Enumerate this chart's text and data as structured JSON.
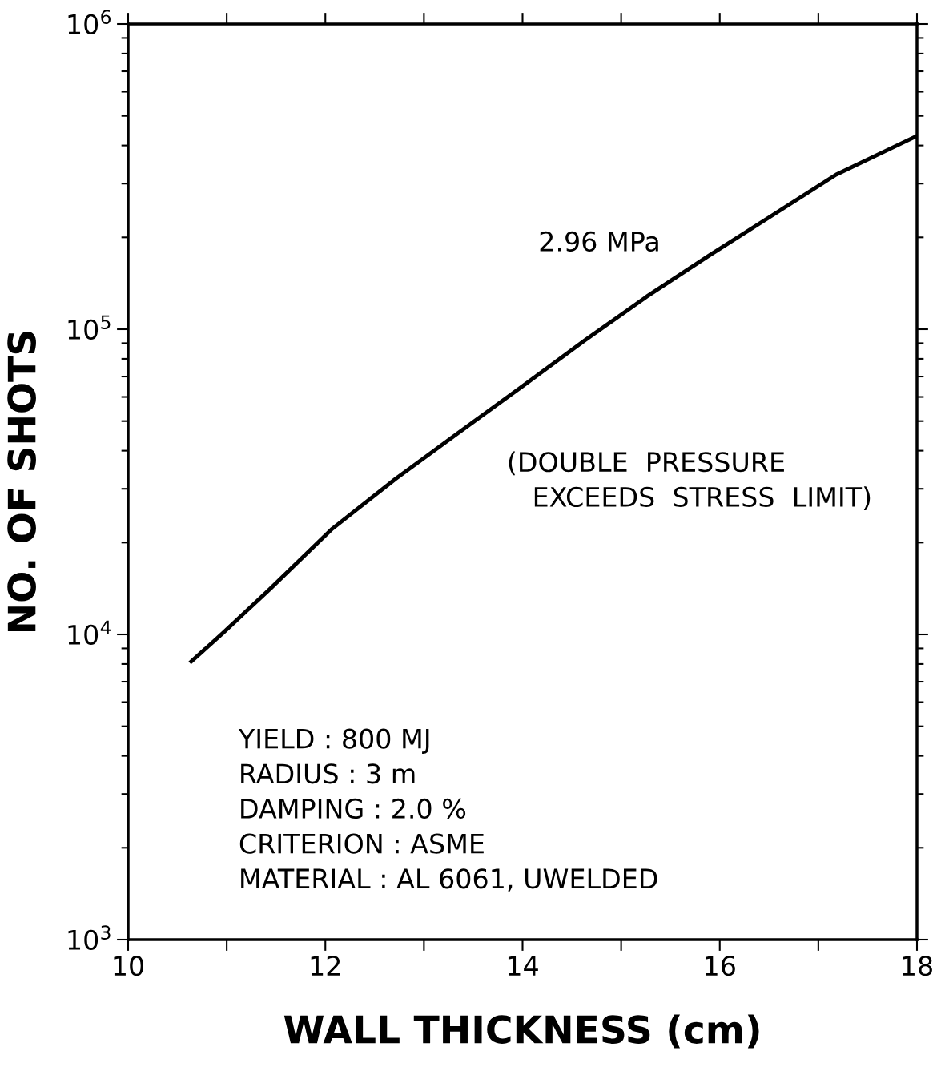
{
  "chart_data": {
    "type": "line",
    "xlabel": "WALL THICKNESS (cm)",
    "ylabel": "NO. OF SHOTS",
    "log": "y",
    "xlim": [
      10,
      18
    ],
    "ylim": [
      1000,
      1000000
    ],
    "xticks": [
      10,
      {
        "value": 11,
        "label": null
      },
      12,
      {
        "value": 13,
        "label": null
      },
      14,
      {
        "value": 15,
        "label": null
      },
      16,
      {
        "value": 17,
        "label": null
      },
      18
    ],
    "yticks": [
      {
        "value": 1000,
        "label": "10$^{3}$"
      },
      {
        "value": 2000,
        "label": null
      },
      {
        "value": 3000,
        "label": null
      },
      {
        "value": 4000,
        "label": null
      },
      {
        "value": 5000,
        "label": null
      },
      {
        "value": 6000,
        "label": null
      },
      {
        "value": 7000,
        "label": null
      },
      {
        "value": 8000,
        "label": null
      },
      {
        "value": 9000,
        "label": null
      },
      {
        "value": 10000,
        "label": "10$^{4}$"
      },
      {
        "value": 20000,
        "label": null
      },
      {
        "value": 30000,
        "label": null
      },
      {
        "value": 40000,
        "label": null
      },
      {
        "value": 50000,
        "label": null
      },
      {
        "value": 60000,
        "label": null
      },
      {
        "value": 70000,
        "label": null
      },
      {
        "value": 80000,
        "label": null
      },
      {
        "value": 90000,
        "label": null
      },
      {
        "value": 100000,
        "label": "10$^{5}$"
      },
      {
        "value": 200000,
        "label": null
      },
      {
        "value": 300000,
        "label": null
      },
      {
        "value": 400000,
        "label": null
      },
      {
        "value": 500000,
        "label": null
      },
      {
        "value": 600000,
        "label": null
      },
      {
        "value": 700000,
        "label": null
      },
      {
        "value": 800000,
        "label": null
      },
      {
        "value": 900000,
        "label": null
      },
      {
        "value": 1000000,
        "label": "10$^{6}$"
      }
    ],
    "grid": false,
    "legend": false,
    "marker": "none",
    "line_style": "solid",
    "series": [
      {
        "name": "2.96 MPa",
        "color": "#000000",
        "x": [
          10.64,
          10.96,
          11.44,
          12.07,
          12.71,
          13.35,
          13.99,
          14.63,
          15.26,
          15.9,
          16.54,
          17.18,
          18.0
        ],
        "values": [
          8150,
          10100,
          14100,
          22200,
          32300,
          45800,
          64700,
          91900,
          128000,
          175000,
          237000,
          321000,
          430000
        ]
      }
    ],
    "annotations": [
      "(DOUBLE  PRESSURE\n   EXCEEDS  STRESS  LIMIT)",
      "YIELD : 800 MJ\nRADIUS : 3 m\nDAMPING : 2.0 %\nCRITERION : ASME\nMATERIAL : AL 6061, UWELDED"
    ]
  }
}
